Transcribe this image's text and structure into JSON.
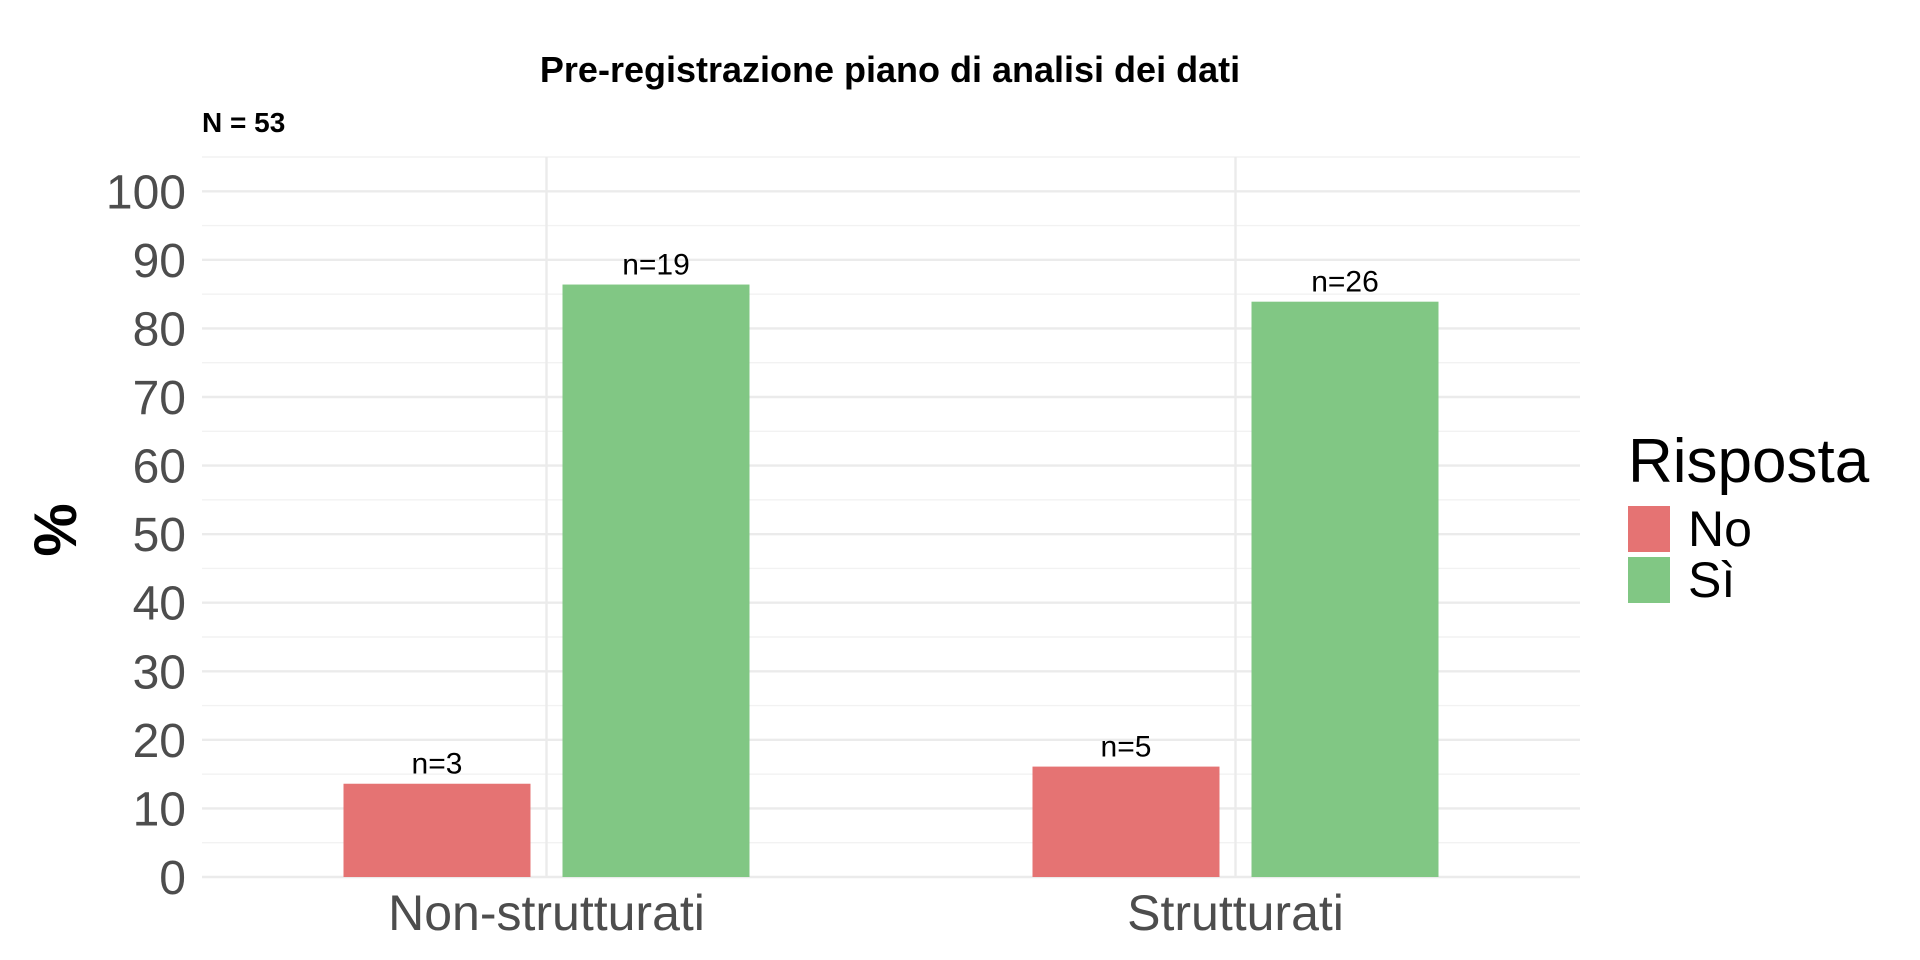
{
  "chart_data": {
    "type": "bar",
    "title": "Pre-registrazione piano di analisi dei dati",
    "subtitle": "N = 53",
    "xlabel": "",
    "ylabel": "%",
    "ylim": [
      0,
      105
    ],
    "yticks": [
      0,
      10,
      20,
      30,
      40,
      50,
      60,
      70,
      80,
      90,
      100
    ],
    "grid": true,
    "legend_title": "Risposta",
    "legend_position": "right",
    "categories": [
      "Non-strutturati",
      "Strutturati"
    ],
    "series": [
      {
        "name": "No",
        "color": "#e57373",
        "values": [
          13.6,
          16.1
        ],
        "labels": [
          "n=3",
          "n=5"
        ]
      },
      {
        "name": "Sì",
        "color": "#81c784",
        "values": [
          86.4,
          83.9
        ],
        "labels": [
          "n=19",
          "n=26"
        ]
      }
    ]
  }
}
